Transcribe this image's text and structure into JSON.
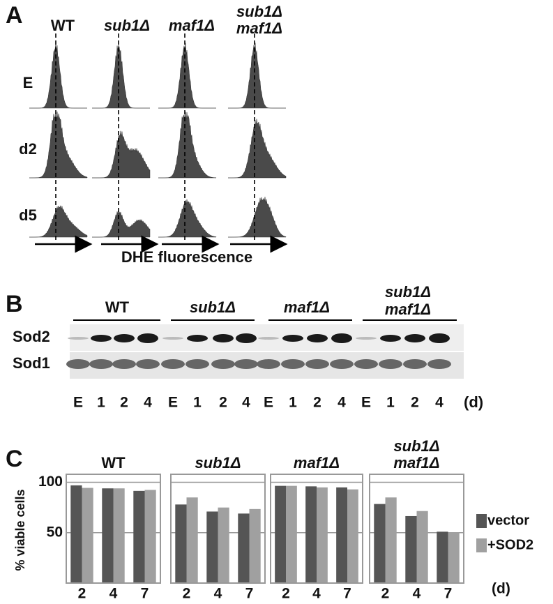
{
  "panel_a": {
    "label": "A",
    "columns": [
      [
        "WT"
      ],
      [
        "sub1Δ"
      ],
      [
        "maf1Δ"
      ],
      [
        "sub1Δ",
        "maf1Δ"
      ]
    ],
    "rows": [
      "E",
      "d2",
      "d5"
    ],
    "xlabel": "DHE fluorescence"
  },
  "panel_b": {
    "label": "B",
    "groups": [
      [
        "WT"
      ],
      [
        "sub1Δ"
      ],
      [
        "maf1Δ"
      ],
      [
        "sub1Δ",
        "maf1Δ"
      ]
    ],
    "proteins": [
      "Sod2",
      "Sod1"
    ],
    "lanes": [
      "E",
      "1",
      "2",
      "4"
    ],
    "unit": "(d)"
  },
  "panel_c": {
    "label": "C"
  },
  "chart_data": [
    {
      "type": "bar",
      "title": [
        "WT"
      ],
      "ylabel": "% viable cells",
      "xlabel": "(d)",
      "categories": [
        "2",
        "4",
        "7"
      ],
      "series": [
        {
          "name": "vector",
          "color": "#555555",
          "values": [
            97,
            94,
            91.5
          ]
        },
        {
          "name": "+SOD2",
          "color": "#a0a0a0",
          "values": [
            94.5,
            94,
            92.5
          ]
        }
      ],
      "ylim": [
        0,
        108
      ],
      "yticks": [
        50,
        100
      ],
      "grid": true
    },
    {
      "type": "bar",
      "title": [
        "sub1Δ"
      ],
      "categories": [
        "2",
        "4",
        "7"
      ],
      "series": [
        {
          "name": "vector",
          "color": "#555555",
          "values": [
            78,
            71,
            69
          ]
        },
        {
          "name": "+SOD2",
          "color": "#a0a0a0",
          "values": [
            85,
            75,
            73.5
          ]
        }
      ],
      "ylim": [
        0,
        108
      ],
      "yticks": [
        50,
        100
      ],
      "grid": true
    },
    {
      "type": "bar",
      "title": [
        "maf1Δ"
      ],
      "categories": [
        "2",
        "4",
        "7"
      ],
      "series": [
        {
          "name": "vector",
          "color": "#555555",
          "values": [
            96.5,
            96,
            95
          ]
        },
        {
          "name": "+SOD2",
          "color": "#a0a0a0",
          "values": [
            96.5,
            95,
            93
          ]
        }
      ],
      "ylim": [
        0,
        108
      ],
      "yticks": [
        50,
        100
      ],
      "grid": true
    },
    {
      "type": "bar",
      "title": [
        "sub1Δ",
        "maf1Δ"
      ],
      "categories": [
        "2",
        "4",
        "7"
      ],
      "series": [
        {
          "name": "vector",
          "color": "#555555",
          "values": [
            78.5,
            66.5,
            51
          ]
        },
        {
          "name": "+SOD2",
          "color": "#a0a0a0",
          "values": [
            85,
            71.5,
            50.5
          ]
        }
      ],
      "ylim": [
        0,
        108
      ],
      "yticks": [
        50,
        100
      ],
      "grid": true
    }
  ]
}
